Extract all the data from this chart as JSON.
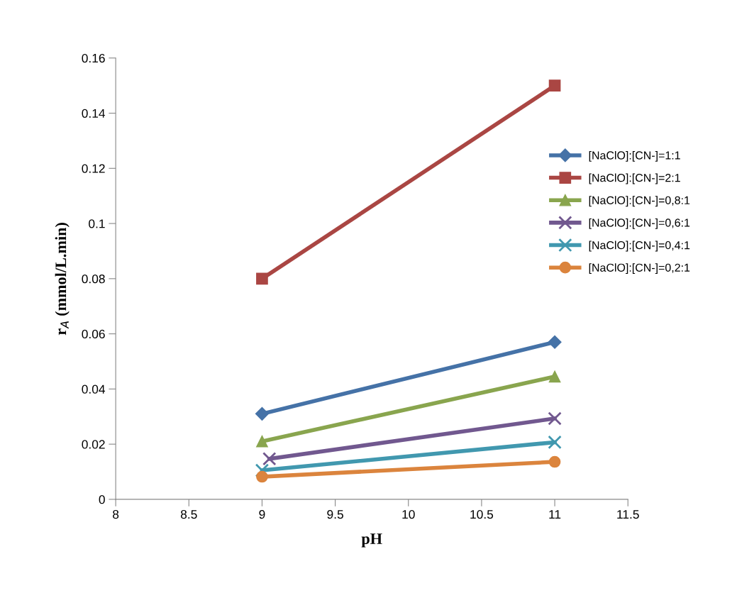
{
  "chart_data": {
    "type": "line",
    "xlabel": "pH",
    "ylabel": "r$_{A}$ (mmol/L.min)",
    "xlim": [
      8,
      11.5
    ],
    "xticks": [
      8,
      8.5,
      9,
      9.5,
      10,
      10.5,
      11,
      11.5
    ],
    "ylim": [
      0,
      0.16
    ],
    "yticks": [
      0,
      0.02,
      0.04,
      0.06,
      0.08,
      0.1,
      0.12,
      0.14,
      0.16
    ],
    "grid": false,
    "legend": "right",
    "line_style": "solid",
    "series": [
      {
        "name": "[NaClO]:[CN-]=1:1",
        "color": "#4572a7",
        "marker": "diamond",
        "x": [
          9,
          11
        ],
        "values": [
          0.031,
          0.057
        ]
      },
      {
        "name": "[NaClO]:[CN-]=2:1",
        "color": "#aa4643",
        "marker": "square",
        "x": [
          9,
          11
        ],
        "values": [
          0.08,
          0.15
        ]
      },
      {
        "name": "[NaClO]:[CN-]=0,8:1",
        "color": "#89a54e",
        "marker": "triangle",
        "x": [
          9,
          11
        ],
        "values": [
          0.021,
          0.0445
        ]
      },
      {
        "name": "[NaClO]:[CN-]=0,6:1",
        "color": "#71588f",
        "marker": "cross",
        "x": [
          9.05,
          11
        ],
        "values": [
          0.0147,
          0.0293
        ]
      },
      {
        "name": "[NaClO]:[CN-]=0,4:1",
        "color": "#4198af",
        "marker": "cross",
        "x": [
          9,
          11
        ],
        "values": [
          0.0105,
          0.0207
        ]
      },
      {
        "name": "[NaClO]:[CN-]=0,2:1",
        "color": "#db843d",
        "marker": "circle",
        "x": [
          9,
          11
        ],
        "values": [
          0.0082,
          0.0136
        ]
      }
    ]
  }
}
